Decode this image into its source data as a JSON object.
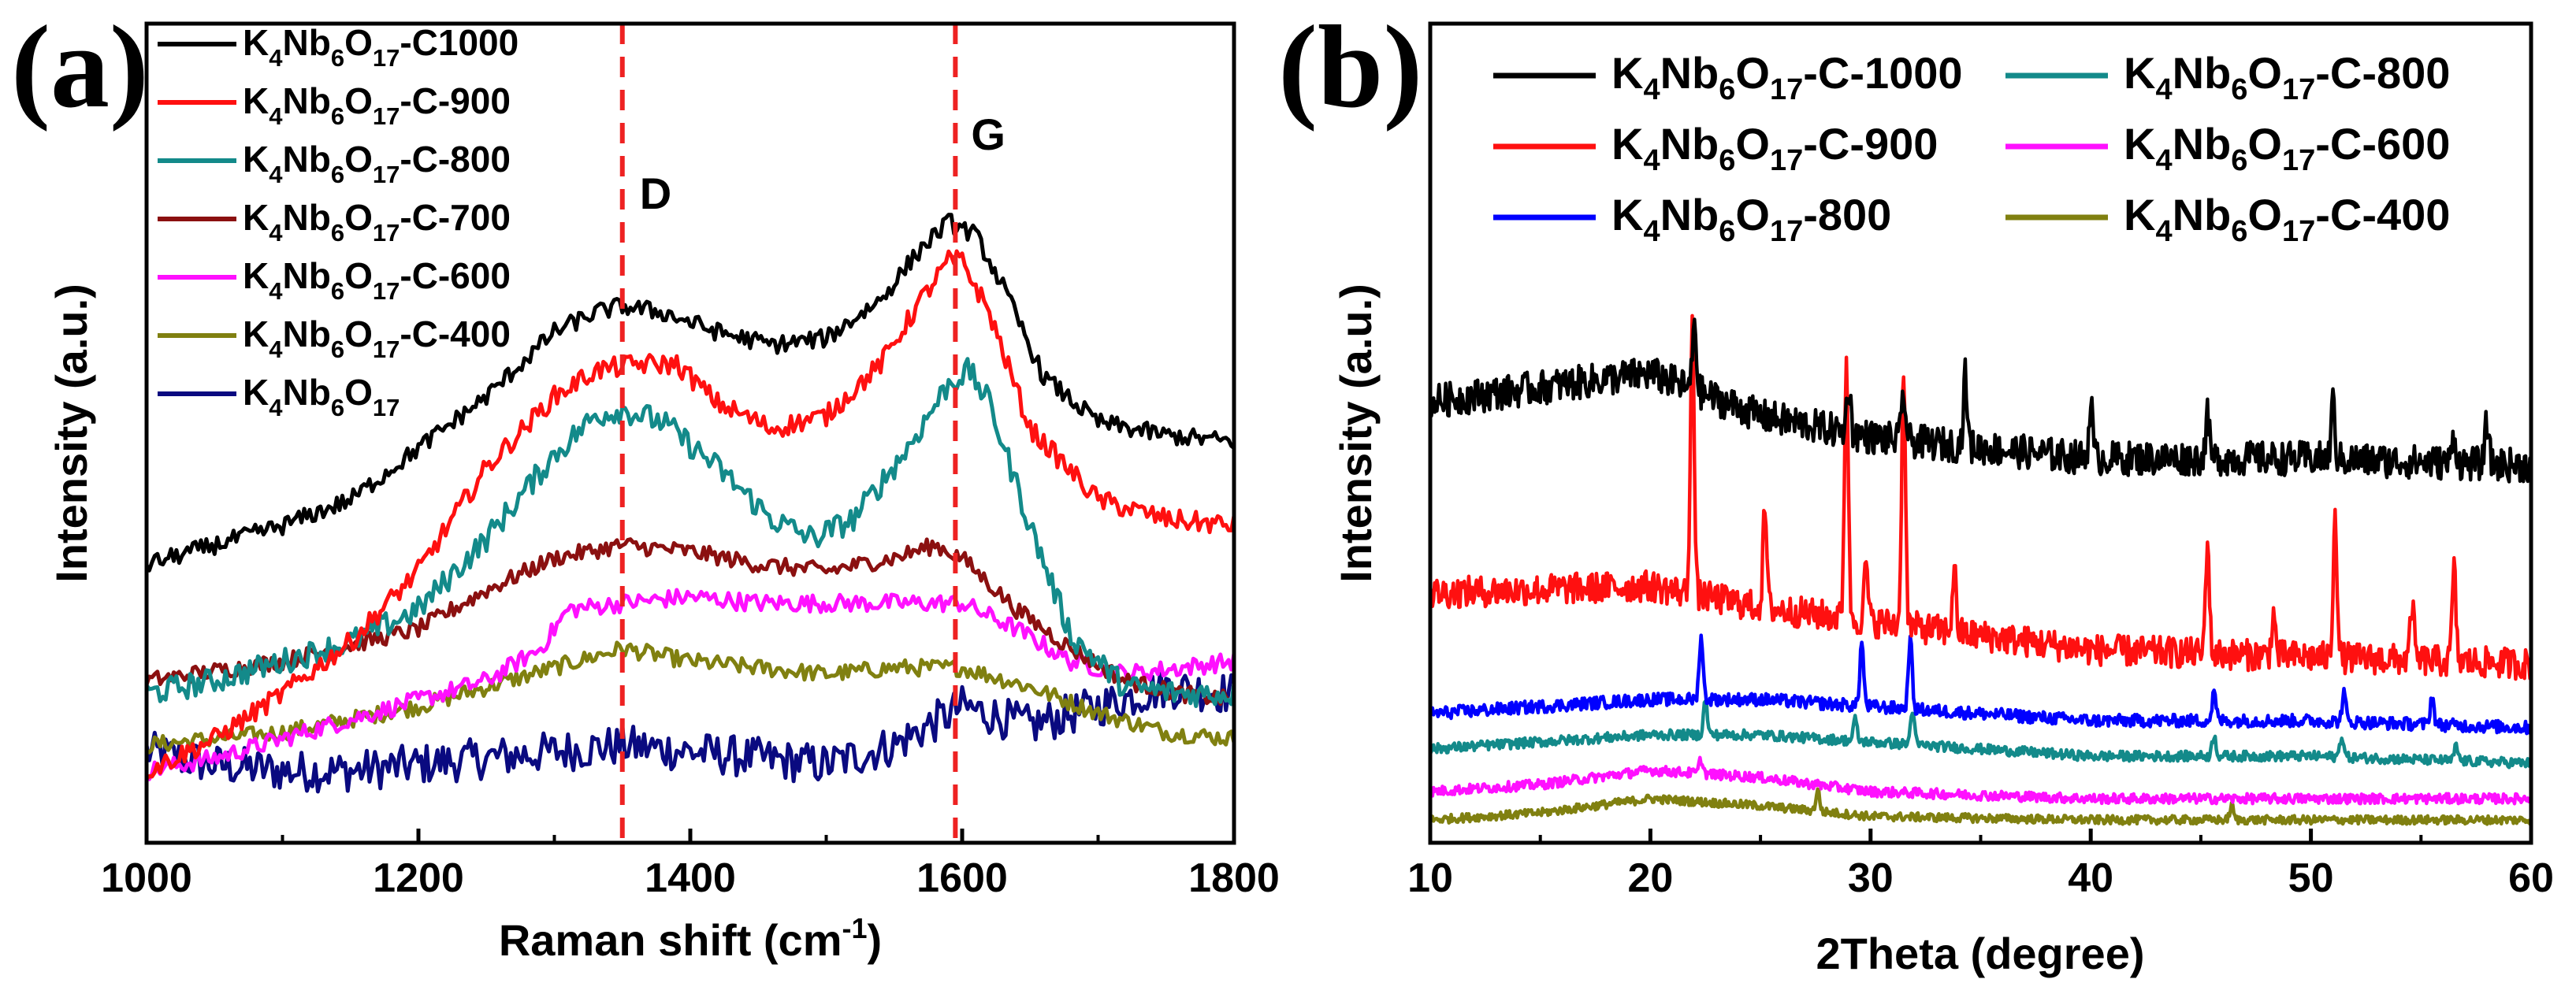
{
  "chart_data": [
    {
      "panel": "(a)",
      "type": "line",
      "xlabel_main": "Raman shift (cm",
      "xlabel_sup": "-1",
      "xlabel_end": ")",
      "ylabel": "Intensity (a.u.)",
      "xlim": [
        1000,
        1800
      ],
      "ylim": [
        0,
        100
      ],
      "xticks": [
        1000,
        1200,
        1400,
        1600,
        1800
      ],
      "yticks_visible": false,
      "legend_position": "top-left",
      "reference_lines": [
        {
          "x": 1350,
          "label": "D",
          "color": "#ee2222"
        },
        {
          "x": 1595,
          "label": "G",
          "color": "#ee2222"
        }
      ],
      "series": [
        {
          "name": "K4Nb6O17-C1000",
          "label_parts": [
            "K",
            "4",
            "Nb",
            "6",
            "O",
            "17",
            "-C1000"
          ],
          "color": "#000000",
          "x": [
            1000,
            1050,
            1100,
            1150,
            1200,
            1250,
            1300,
            1330,
            1350,
            1380,
            1420,
            1460,
            1500,
            1540,
            1570,
            1590,
            1610,
            1630,
            1660,
            1700,
            1750,
            1800
          ],
          "y": [
            37,
            40,
            43,
            47,
            55,
            63,
            73,
            76,
            77,
            76,
            73,
            71,
            72,
            78,
            86,
            90,
            88,
            80,
            66,
            59,
            57,
            56
          ]
        },
        {
          "name": "K4Nb6O17-C-900",
          "label_parts": [
            "K",
            "4",
            "Nb",
            "6",
            "O",
            "17",
            "-C-900"
          ],
          "color": "#ff1010",
          "x": [
            1000,
            1050,
            1100,
            1150,
            1200,
            1250,
            1300,
            1330,
            1360,
            1390,
            1420,
            1460,
            1500,
            1540,
            1570,
            1590,
            1600,
            1620,
            1650,
            1700,
            1750,
            1800
          ],
          "y": [
            5,
            10,
            17,
            25,
            36,
            52,
            63,
            67,
            68,
            68,
            62,
            58,
            60,
            68,
            78,
            84,
            84,
            76,
            58,
            47,
            44,
            43
          ]
        },
        {
          "name": "K4Nb6O17-C-800",
          "label_parts": [
            "K",
            "4",
            "Nb",
            "6",
            "O",
            "17",
            "-C-800"
          ],
          "color": "#138a8a",
          "x": [
            1000,
            1050,
            1100,
            1150,
            1200,
            1250,
            1300,
            1330,
            1350,
            1380,
            1420,
            1460,
            1490,
            1520,
            1560,
            1590,
            1605,
            1620,
            1650,
            1680,
            1720,
            1760,
            1800
          ],
          "y": [
            17,
            19,
            22,
            25,
            30,
            41,
            54,
            60,
            61,
            59,
            52,
            44,
            41,
            44,
            55,
            65,
            67,
            62,
            43,
            26,
            18,
            17,
            17
          ]
        },
        {
          "name": "K4Nb6O17-C-700",
          "label_parts": [
            "K",
            "4",
            "Nb",
            "6",
            "O",
            "17",
            "-C-700"
          ],
          "color": "#8b1010",
          "x": [
            1000,
            1100,
            1200,
            1250,
            1300,
            1350,
            1400,
            1450,
            1500,
            1550,
            1580,
            1600,
            1640,
            1680,
            1720,
            1760,
            1800
          ],
          "y": [
            19,
            22,
            27,
            33,
            38,
            40,
            39,
            37,
            36,
            38,
            40,
            38,
            30,
            24,
            19,
            17,
            16
          ]
        },
        {
          "name": "K4Nb6O17-C-600",
          "label_parts": [
            "K",
            "4",
            "Nb",
            "6",
            "O",
            "17",
            "-C-600"
          ],
          "color": "#ff10ff",
          "x": [
            1000,
            1050,
            1100,
            1150,
            1200,
            1250,
            1290,
            1310,
            1350,
            1400,
            1450,
            1500,
            1550,
            1600,
            1640,
            1680,
            1720,
            1760,
            1800
          ],
          "y": [
            5,
            7,
            10,
            13,
            16,
            19,
            24,
            30,
            31,
            32,
            31,
            31,
            31,
            31,
            27,
            22,
            20,
            21,
            22
          ]
        },
        {
          "name": "K4Nb6O17-C-400",
          "label_parts": [
            "K",
            "4",
            "Nb",
            "6",
            "O",
            "17",
            "-C-400"
          ],
          "color": "#808010",
          "x": [
            1000,
            1050,
            1100,
            1150,
            1200,
            1250,
            1300,
            1350,
            1400,
            1450,
            1500,
            1550,
            1600,
            1650,
            1700,
            1750,
            1800
          ],
          "y": [
            9,
            10,
            11,
            13,
            15,
            18,
            21,
            24,
            22,
            21,
            20,
            21,
            21,
            18,
            14,
            11,
            10
          ]
        },
        {
          "name": "K4Nb6O17",
          "label_parts": [
            "K",
            "4",
            "Nb",
            "6",
            "O",
            "17",
            ""
          ],
          "color": "#0a0a80",
          "x": [
            1000,
            1050,
            1100,
            1150,
            1200,
            1250,
            1300,
            1350,
            1400,
            1450,
            1500,
            1550,
            1600,
            1650,
            1700,
            1750,
            1800
          ],
          "y": [
            8,
            6,
            5,
            5,
            6,
            7,
            8,
            9,
            8,
            7,
            6,
            9,
            15,
            12,
            15,
            18,
            17
          ]
        }
      ]
    },
    {
      "panel": "(b)",
      "type": "line",
      "xlabel": "2Theta (degree)",
      "ylabel": "Intensity (a.u.)",
      "xlim": [
        10,
        60
      ],
      "ylim": [
        0,
        100
      ],
      "xticks": [
        10,
        20,
        30,
        40,
        50,
        60
      ],
      "yticks_visible": false,
      "legend_position": "top, two columns",
      "series": [
        {
          "name": "K4Nb6O17-C-1000",
          "label_parts": [
            "K",
            "4",
            "Nb",
            "6",
            "O",
            "17",
            "-C-1000"
          ],
          "color": "#000000",
          "baseline": [
            [
              10,
              60
            ],
            [
              20,
              64
            ],
            [
              25,
              58
            ],
            [
              30,
              55
            ],
            [
              40,
              52
            ],
            [
              50,
              52
            ],
            [
              60,
              51
            ]
          ],
          "peaks": [
            [
              22,
              10
            ],
            [
              29,
              7
            ],
            [
              31.5,
              7
            ],
            [
              34.3,
              10
            ],
            [
              40,
              8
            ],
            [
              45.3,
              6
            ],
            [
              51,
              8
            ],
            [
              56.5,
              4
            ],
            [
              58,
              6
            ]
          ]
        },
        {
          "name": "K4Nb6O17-C-900",
          "label_parts": [
            "K",
            "4",
            "Nb",
            "6",
            "O",
            "17",
            "-C-900"
          ],
          "color": "#ff1010",
          "baseline": [
            [
              10,
              33
            ],
            [
              20,
              34
            ],
            [
              25,
              31
            ],
            [
              30,
              29
            ],
            [
              40,
              25
            ],
            [
              50,
              24
            ],
            [
              60,
              23
            ]
          ],
          "peaks": [
            [
              21.9,
              39
            ],
            [
              25.2,
              14
            ],
            [
              28.9,
              37
            ],
            [
              29.8,
              8
            ],
            [
              31.5,
              37
            ],
            [
              33.8,
              9
            ],
            [
              45.3,
              16
            ],
            [
              48.3,
              6
            ],
            [
              51.1,
              21
            ],
            [
              54.6,
              8
            ],
            [
              56.5,
              13
            ]
          ]
        },
        {
          "name": "K4Nb6O17-800",
          "label_parts": [
            "K",
            "4",
            "Nb",
            "6",
            "O",
            "17",
            "-800"
          ],
          "color": "#0000ff",
          "baseline": [
            [
              10,
              16
            ],
            [
              20,
              18
            ],
            [
              25,
              18
            ],
            [
              30,
              17
            ],
            [
              40,
              15
            ],
            [
              50,
              15
            ],
            [
              60,
              14
            ]
          ],
          "peaks": [
            [
              22.3,
              9
            ],
            [
              29.6,
              9
            ],
            [
              31.8,
              10
            ],
            [
              45.6,
              4
            ],
            [
              51.5,
              4
            ],
            [
              55.5,
              4
            ]
          ]
        },
        {
          "name": "K4Nb6O17-C-800",
          "label_parts": [
            "K",
            "4",
            "Nb",
            "6",
            "O",
            "17",
            "-C-800"
          ],
          "color": "#138a8a",
          "baseline": [
            [
              10,
              11
            ],
            [
              20,
              13
            ],
            [
              25,
              13
            ],
            [
              30,
              12
            ],
            [
              40,
              10
            ],
            [
              50,
              10
            ],
            [
              60,
              9
            ]
          ],
          "peaks": [
            [
              22.5,
              5
            ],
            [
              29.3,
              3
            ],
            [
              31.9,
              5
            ],
            [
              45.6,
              3
            ],
            [
              51.4,
              3
            ],
            [
              56.6,
              2
            ]
          ]
        },
        {
          "name": "K4Nb6O17-C-600",
          "label_parts": [
            "K",
            "4",
            "Nb",
            "6",
            "O",
            "17",
            "-C-600"
          ],
          "color": "#ff10ff",
          "baseline": [
            [
              10,
              5
            ],
            [
              15,
              6
            ],
            [
              20,
              8
            ],
            [
              25,
              7
            ],
            [
              30,
              5
            ],
            [
              40,
              4
            ],
            [
              50,
              4
            ],
            [
              60,
              4
            ]
          ],
          "peaks": [
            [
              22.3,
              2
            ]
          ]
        },
        {
          "name": "K4Nb6O17-C-400",
          "label_parts": [
            "K",
            "4",
            "Nb",
            "6",
            "O",
            "17",
            "-C-400"
          ],
          "color": "#808010",
          "baseline": [
            [
              10,
              1
            ],
            [
              15,
              2
            ],
            [
              20,
              4
            ],
            [
              25,
              3
            ],
            [
              30,
              1.5
            ],
            [
              40,
              1
            ],
            [
              50,
              1
            ],
            [
              60,
              1
            ]
          ],
          "peaks": [
            [
              27.6,
              3
            ],
            [
              46.4,
              2
            ]
          ]
        }
      ]
    }
  ]
}
